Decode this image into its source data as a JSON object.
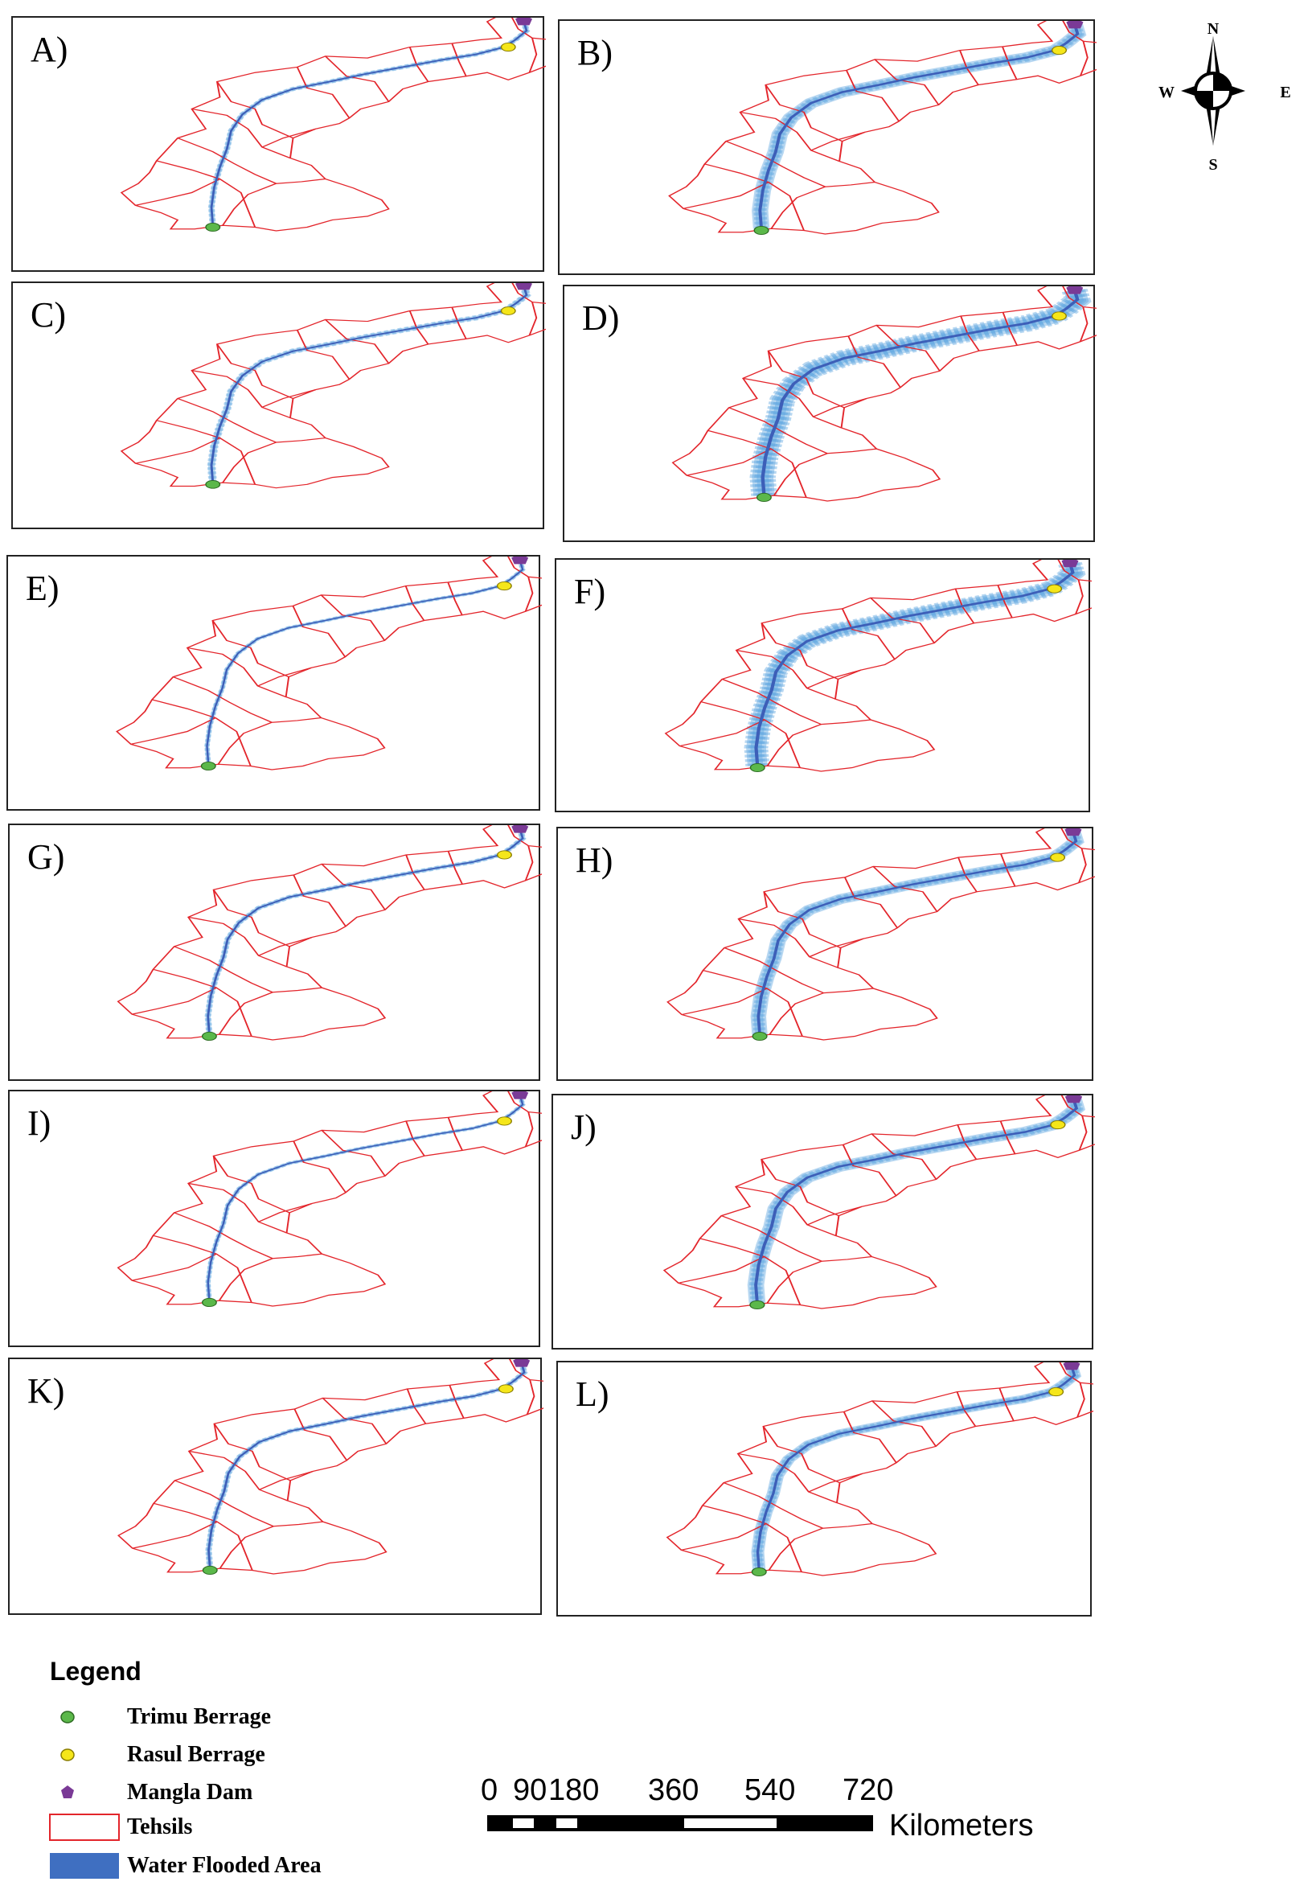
{
  "panels": [
    {
      "label": "A)",
      "flood": 1,
      "wide": 0.6
    },
    {
      "label": "B)",
      "flood": 2,
      "wide": 1.6
    },
    {
      "label": "C)",
      "flood": 1,
      "wide": 0.9
    },
    {
      "label": "D)",
      "flood": 3,
      "wide": 2.2
    },
    {
      "label": "E)",
      "flood": 1,
      "wide": 0.4
    },
    {
      "label": "F)",
      "flood": 3,
      "wide": 2.0
    },
    {
      "label": "G)",
      "flood": 1,
      "wide": 0.6
    },
    {
      "label": "H)",
      "flood": 2,
      "wide": 1.5
    },
    {
      "label": "I)",
      "flood": 1,
      "wide": 0.4
    },
    {
      "label": "J)",
      "flood": 2,
      "wide": 1.6
    },
    {
      "label": "K)",
      "flood": 1,
      "wide": 0.6
    },
    {
      "label": "L)",
      "flood": 2,
      "wide": 1.2
    }
  ],
  "compass": {
    "n": "N",
    "s": "S",
    "e": "E",
    "w": "W"
  },
  "legend": {
    "title": "Legend",
    "items": [
      {
        "label": "Trimu Berrage",
        "symbol": "green-circle-icon",
        "color": "#5bb84a"
      },
      {
        "label": "Rasul Berrage",
        "symbol": "yellow-circle-icon",
        "color": "#f5e61a"
      },
      {
        "label": "Mangla Dam",
        "symbol": "purple-pentagon-icon",
        "color": "#7a3a96"
      },
      {
        "label": "Tehsils",
        "symbol": "red-outline-box-icon",
        "color": "#e3252b"
      },
      {
        "label": "Water Flooded Area",
        "symbol": "blue-fill-box-icon",
        "color": "#3f6fc1"
      }
    ]
  },
  "scale": {
    "ticks": [
      "0",
      "90",
      "180",
      "360",
      "540",
      "720"
    ],
    "unit": "Kilometers"
  },
  "colors": {
    "tehsil": "#e3252b",
    "river": "#3d5fb8",
    "flood": "#5fa7e0",
    "trimu": "#5bb84a",
    "rasul": "#f5e61a",
    "mangla": "#7a3a96"
  }
}
